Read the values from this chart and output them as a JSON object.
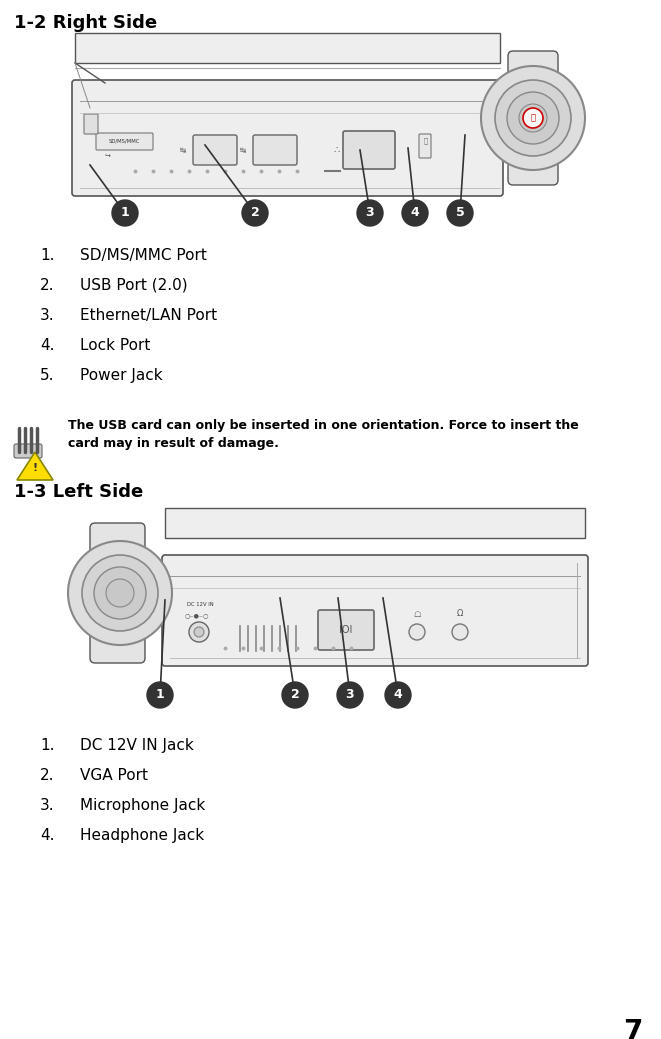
{
  "bg_color": "#ffffff",
  "title1": "1-2 Right Side",
  "title2": "1-3 Left Side",
  "title_fontsize": 13,
  "right_items": [
    "SD/MS/MMC Port",
    "USB Port (2.0)",
    "Ethernet/LAN Port",
    "Lock Port",
    "Power Jack"
  ],
  "left_items": [
    "DC 12V IN Jack",
    "VGA Port",
    "Microphone Jack",
    "Headphone Jack"
  ],
  "warning_line1": "The USB card can only be inserted in one orientation. Force to insert the",
  "warning_line2": "card may in result of damage.",
  "label_fontsize": 11,
  "number_fontsize": 9,
  "page_number": "7",
  "circle_color": "#333333",
  "circle_text_color": "#ffffff",
  "text_color": "#000000",
  "diagram_edge": "#555555",
  "diagram_face": "#f4f4f4",
  "diagram_face2": "#e8e8e8"
}
